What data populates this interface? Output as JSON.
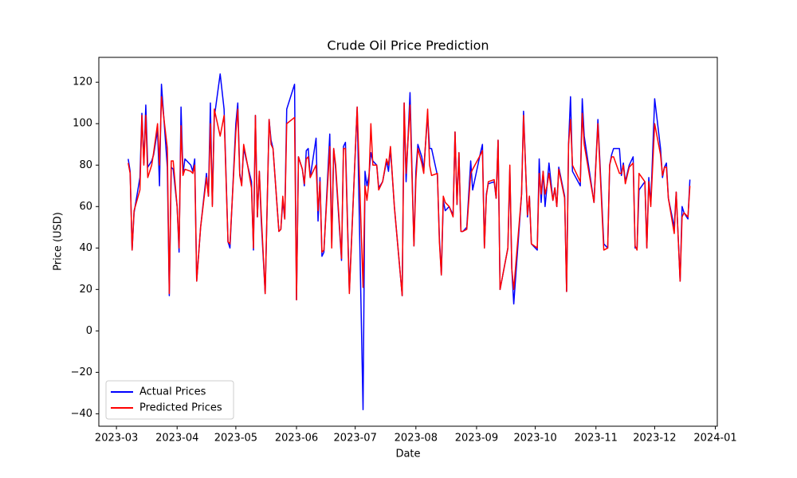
{
  "chart_data": {
    "type": "line",
    "title": "Crude Oil Price Prediction",
    "x_label": "Date",
    "y_label": "Price (USD)",
    "x": [
      "2023-03-07",
      "2023-03-08",
      "2023-03-09",
      "2023-03-10",
      "2023-03-13",
      "2023-03-14",
      "2023-03-15",
      "2023-03-16",
      "2023-03-17",
      "2023-03-19",
      "2023-03-20",
      "2023-03-22",
      "2023-03-23",
      "2023-03-24",
      "2023-03-27",
      "2023-03-28",
      "2023-03-29",
      "2023-03-30",
      "2023-04-01",
      "2023-04-02",
      "2023-04-03",
      "2023-04-04",
      "2023-04-05",
      "2023-04-08",
      "2023-04-09",
      "2023-04-10",
      "2023-04-11",
      "2023-04-13",
      "2023-04-16",
      "2023-04-17",
      "2023-04-18",
      "2023-04-19",
      "2023-04-20",
      "2023-04-23",
      "2023-04-25",
      "2023-04-27",
      "2023-04-28",
      "2023-05-01",
      "2023-05-02",
      "2023-05-03",
      "2023-05-04",
      "2023-05-05",
      "2023-05-07",
      "2023-05-09",
      "2023-05-10",
      "2023-05-11",
      "2023-05-12",
      "2023-05-13",
      "2023-05-14",
      "2023-05-16",
      "2023-05-18",
      "2023-05-19",
      "2023-05-20",
      "2023-05-23",
      "2023-05-24",
      "2023-05-25",
      "2023-05-26",
      "2023-05-27",
      "2023-05-31",
      "2023-06-01",
      "2023-06-02",
      "2023-06-04",
      "2023-06-05",
      "2023-06-06",
      "2023-06-07",
      "2023-06-08",
      "2023-06-11",
      "2023-06-12",
      "2023-06-13",
      "2023-06-14",
      "2023-06-15",
      "2023-06-18",
      "2023-06-19",
      "2023-06-20",
      "2023-06-21",
      "2023-06-24",
      "2023-06-25",
      "2023-06-26",
      "2023-06-28",
      "2023-07-02",
      "2023-07-05",
      "2023-07-06",
      "2023-07-07",
      "2023-07-08",
      "2023-07-09",
      "2023-07-10",
      "2023-07-12",
      "2023-07-13",
      "2023-07-15",
      "2023-07-17",
      "2023-07-18",
      "2023-07-19",
      "2023-07-21",
      "2023-07-25",
      "2023-07-26",
      "2023-07-27",
      "2023-07-29",
      "2023-07-31",
      "2023-08-01",
      "2023-08-02",
      "2023-08-04",
      "2023-08-05",
      "2023-08-07",
      "2023-08-08",
      "2023-08-09",
      "2023-08-12",
      "2023-08-13",
      "2023-08-14",
      "2023-08-15",
      "2023-08-16",
      "2023-08-18",
      "2023-08-20",
      "2023-08-21",
      "2023-08-22",
      "2023-08-23",
      "2023-08-24",
      "2023-08-25",
      "2023-08-27",
      "2023-08-29",
      "2023-08-30",
      "2023-09-03",
      "2023-09-04",
      "2023-09-05",
      "2023-09-06",
      "2023-09-07",
      "2023-09-10",
      "2023-09-11",
      "2023-09-12",
      "2023-09-13",
      "2023-09-17",
      "2023-09-18",
      "2023-09-19",
      "2023-09-20",
      "2023-09-24",
      "2023-09-25",
      "2023-09-27",
      "2023-09-28",
      "2023-09-29",
      "2023-10-02",
      "2023-10-03",
      "2023-10-04",
      "2023-10-05",
      "2023-10-06",
      "2023-10-07",
      "2023-10-08",
      "2023-10-10",
      "2023-10-11",
      "2023-10-12",
      "2023-10-13",
      "2023-10-16",
      "2023-10-17",
      "2023-10-18",
      "2023-10-19",
      "2023-10-20",
      "2023-10-24",
      "2023-10-25",
      "2023-10-26",
      "2023-10-31",
      "2023-11-02",
      "2023-11-05",
      "2023-11-07",
      "2023-11-08",
      "2023-11-09",
      "2023-11-10",
      "2023-11-13",
      "2023-11-14",
      "2023-11-15",
      "2023-11-16",
      "2023-11-18",
      "2023-11-20",
      "2023-11-21",
      "2023-11-22",
      "2023-11-23",
      "2023-11-26",
      "2023-11-27",
      "2023-11-28",
      "2023-11-29",
      "2023-12-01",
      "2023-12-04",
      "2023-12-05",
      "2023-12-06",
      "2023-12-07",
      "2023-12-08",
      "2023-12-11",
      "2023-12-12",
      "2023-12-14",
      "2023-12-15",
      "2023-12-16",
      "2023-12-18",
      "2023-12-19"
    ],
    "series": [
      {
        "name": "Actual Prices",
        "color": "#0000ff",
        "values": [
          83,
          77,
          39,
          57,
          74,
          105,
          81,
          109,
          79,
          82,
          85,
          97,
          70,
          119,
          79,
          17,
          79,
          78,
          60,
          38,
          108,
          76,
          83,
          80,
          77,
          83,
          24,
          50,
          76,
          65,
          110,
          61,
          103,
          124,
          107,
          43,
          40,
          100,
          110,
          76,
          71,
          88,
          80,
          72,
          39,
          104,
          55,
          77,
          53,
          18,
          102,
          92,
          88,
          48,
          49,
          63,
          54,
          107,
          119,
          15,
          84,
          78,
          70,
          87,
          88,
          74,
          93,
          53,
          74,
          36,
          38,
          95,
          42,
          88,
          78,
          34,
          89,
          91,
          19,
          108,
          -38,
          77,
          70,
          75,
          86,
          82,
          80,
          69,
          72,
          82,
          77,
          88,
          60,
          17,
          110,
          72,
          115,
          41,
          77,
          90,
          84,
          78,
          104,
          88,
          88,
          75,
          45,
          27,
          63,
          58,
          60,
          56,
          96,
          61,
          86,
          48,
          48,
          50,
          82,
          68,
          86,
          90,
          40,
          66,
          71,
          72,
          64,
          92,
          20,
          40,
          78,
          30,
          13,
          66,
          106,
          55,
          65,
          42,
          39,
          83,
          62,
          77,
          60,
          70,
          81,
          63,
          69,
          60,
          79,
          65,
          19,
          90,
          113,
          77,
          70,
          112,
          94,
          62,
          102,
          42,
          40,
          80,
          85,
          88,
          88,
          75,
          81,
          72,
          80,
          84,
          40,
          40,
          68,
          72,
          40,
          74,
          61,
          112,
          88,
          74,
          79,
          81,
          64,
          50,
          67,
          24,
          60,
          57,
          54,
          73
        ]
      },
      {
        "name": "Predicted Prices",
        "color": "#ff0000",
        "values": [
          81,
          76,
          39,
          58,
          68,
          104,
          80,
          104,
          74,
          80,
          86,
          100,
          80,
          113,
          88,
          18,
          82,
          82,
          60,
          40,
          99,
          75,
          78,
          77,
          76,
          80,
          24,
          50,
          74,
          65,
          100,
          60,
          107,
          94,
          104,
          43,
          42,
          96,
          107,
          75,
          70,
          90,
          80,
          69,
          40,
          104,
          55,
          77,
          56,
          18,
          102,
          90,
          88,
          48,
          49,
          65,
          54,
          100,
          103,
          15,
          84,
          78,
          71,
          83,
          84,
          74,
          80,
          58,
          72,
          38,
          39,
          89,
          40,
          88,
          80,
          35,
          88,
          88,
          18,
          108,
          21,
          70,
          63,
          72,
          100,
          80,
          80,
          68,
          72,
          83,
          80,
          89,
          60,
          17,
          110,
          76,
          109,
          41,
          73,
          88,
          81,
          76,
          107,
          80,
          75,
          76,
          43,
          27,
          65,
          62,
          60,
          55,
          96,
          61,
          86,
          48,
          48,
          49,
          76,
          78,
          85,
          87,
          40,
          65,
          72,
          73,
          64,
          92,
          20,
          40,
          80,
          30,
          20,
          66,
          104,
          56,
          65,
          42,
          40,
          76,
          66,
          77,
          66,
          70,
          76,
          63,
          69,
          60,
          78,
          64,
          19,
          90,
          102,
          80,
          72,
          105,
          90,
          62,
          100,
          39,
          40,
          80,
          84,
          84,
          76,
          76,
          80,
          71,
          79,
          81,
          41,
          39,
          76,
          72,
          40,
          72,
          60,
          100,
          85,
          75,
          79,
          79,
          64,
          47,
          67,
          24,
          55,
          57,
          55,
          70
        ]
      }
    ],
    "xlim": [
      "2023-02-20",
      "2024-01-02"
    ],
    "xticks": [
      {
        "value": "2023-03-01",
        "label": "2023-03"
      },
      {
        "value": "2023-04-01",
        "label": "2023-04"
      },
      {
        "value": "2023-05-01",
        "label": "2023-05"
      },
      {
        "value": "2023-06-01",
        "label": "2023-06"
      },
      {
        "value": "2023-07-01",
        "label": "2023-07"
      },
      {
        "value": "2023-08-01",
        "label": "2023-08"
      },
      {
        "value": "2023-09-01",
        "label": "2023-09"
      },
      {
        "value": "2023-10-01",
        "label": "2023-10"
      },
      {
        "value": "2023-11-01",
        "label": "2023-11"
      },
      {
        "value": "2023-12-01",
        "label": "2023-12"
      },
      {
        "value": "2024-01-01",
        "label": "2024-01"
      }
    ],
    "ylim": [
      -46,
      132
    ],
    "yticks": [
      {
        "value": -40,
        "label": "−40"
      },
      {
        "value": -20,
        "label": "−20"
      },
      0,
      20,
      40,
      60,
      80,
      100,
      120
    ],
    "legend": "lower left",
    "grid": false
  }
}
